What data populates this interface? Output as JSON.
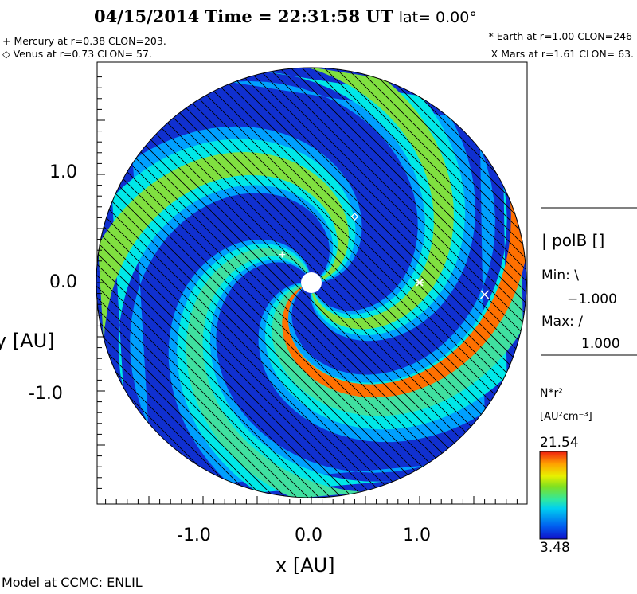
{
  "header": {
    "title": "04/15/2014 Time = 22:31:58 UT",
    "lat": "lat= 0.00°"
  },
  "planets": {
    "mercury": "+ Mercury at r=0.38 CLON=203.",
    "venus": "◇ Venus at r=0.73 CLON= 57.",
    "earth": "* Earth at  r=1.00 CLON=246",
    "mars": "X Mars at r=1.61 CLON= 63."
  },
  "legend": {
    "field": "| polB []",
    "min_label": "Min: \\",
    "min_value": "−1.000",
    "max_label": "Max: /",
    "max_value": "1.000",
    "quantity": "N*r²",
    "units": "[AU²cm⁻³]",
    "cb_max": "21.54",
    "cb_min": "3.48"
  },
  "footer": "Model at CCMC: ENLIL",
  "chart_data": {
    "type": "heatmap",
    "title": "04/15/2014 Time = 22:31:58 UT lat= 0.00°",
    "xlabel": "x [AU]",
    "ylabel": "y [AU]",
    "xlim": [
      -2.0,
      2.0
    ],
    "ylim": [
      -2.0,
      2.0
    ],
    "xticks": [
      "-1.0",
      "0.0",
      "1.0"
    ],
    "yticks": [
      "1.0",
      "0.0",
      "-1.0"
    ],
    "xtick_values": [
      -1.0,
      0.0,
      1.0
    ],
    "ytick_values": [
      1.0,
      0.0,
      -1.0
    ],
    "colorbar_range": [
      3.48,
      21.54
    ],
    "colors": [
      "#1010c8",
      "#0050f0",
      "#00a0ff",
      "#00e8e8",
      "#40e0a0",
      "#80e040",
      "#d8f000",
      "#f0c000",
      "#ff7000",
      "#e01010"
    ],
    "planets": [
      {
        "name": "Mercury",
        "r": 0.38,
        "marker": "+",
        "x": -0.27,
        "y": 0.26
      },
      {
        "name": "Venus",
        "r": 0.73,
        "marker": "diamond",
        "x": 0.4,
        "y": 0.61
      },
      {
        "name": "Earth",
        "r": 1.0,
        "marker": "*",
        "x": 1.0,
        "y": 0.0
      },
      {
        "name": "Mars",
        "r": 1.61,
        "marker": "x",
        "x": 1.6,
        "y": -0.11
      }
    ]
  }
}
